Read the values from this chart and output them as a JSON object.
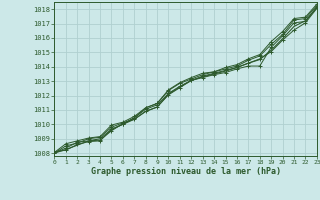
{
  "title": "Graphe pression niveau de la mer (hPa)",
  "bg_color": "#cce8e8",
  "grid_color": "#b0d0d0",
  "line_color": "#2d5a2d",
  "xlim": [
    0,
    23
  ],
  "ylim": [
    1007.8,
    1018.5
  ],
  "yticks": [
    1008,
    1009,
    1010,
    1011,
    1012,
    1013,
    1014,
    1015,
    1016,
    1017,
    1018
  ],
  "xticks": [
    0,
    1,
    2,
    3,
    4,
    5,
    6,
    7,
    8,
    9,
    10,
    11,
    12,
    13,
    14,
    15,
    16,
    17,
    18,
    19,
    20,
    21,
    22,
    23
  ],
  "series": [
    [
      1008.0,
      1008.5,
      1008.7,
      1009.0,
      1009.1,
      1009.8,
      1010.1,
      1010.35,
      1010.9,
      1011.2,
      1012.05,
      1012.55,
      1013.05,
      1013.25,
      1013.45,
      1013.6,
      1013.85,
      1014.05,
      1014.05,
      1015.35,
      1016.15,
      1017.05,
      1017.15,
      1018.15
    ],
    [
      1008.0,
      1008.35,
      1008.75,
      1008.85,
      1008.9,
      1009.55,
      1010.05,
      1010.45,
      1011.05,
      1011.35,
      1012.15,
      1012.65,
      1013.05,
      1013.35,
      1013.55,
      1013.75,
      1013.95,
      1014.25,
      1014.55,
      1015.05,
      1015.85,
      1016.55,
      1017.05,
      1018.05
    ],
    [
      1008.05,
      1008.65,
      1008.85,
      1009.05,
      1009.15,
      1009.95,
      1010.15,
      1010.55,
      1011.15,
      1011.45,
      1012.35,
      1012.85,
      1013.15,
      1013.45,
      1013.65,
      1013.85,
      1014.05,
      1014.45,
      1014.75,
      1015.55,
      1016.25,
      1017.25,
      1017.35,
      1018.25
    ],
    [
      1008.1,
      1008.2,
      1008.6,
      1008.8,
      1008.85,
      1009.65,
      1010.0,
      1010.45,
      1011.15,
      1011.45,
      1012.4,
      1012.9,
      1013.25,
      1013.55,
      1013.65,
      1013.95,
      1014.15,
      1014.55,
      1014.85,
      1015.75,
      1016.45,
      1017.35,
      1017.45,
      1018.35
    ]
  ],
  "series_smooth": [
    1008.0,
    1008.25,
    1008.55,
    1008.85,
    1009.0,
    1009.65,
    1010.0,
    1010.35,
    1010.9,
    1011.2,
    1012.1,
    1012.6,
    1013.05,
    1013.3,
    1013.5,
    1013.7,
    1013.95,
    1014.25,
    1014.5,
    1015.15,
    1015.95,
    1016.8,
    1017.2,
    1018.1
  ]
}
